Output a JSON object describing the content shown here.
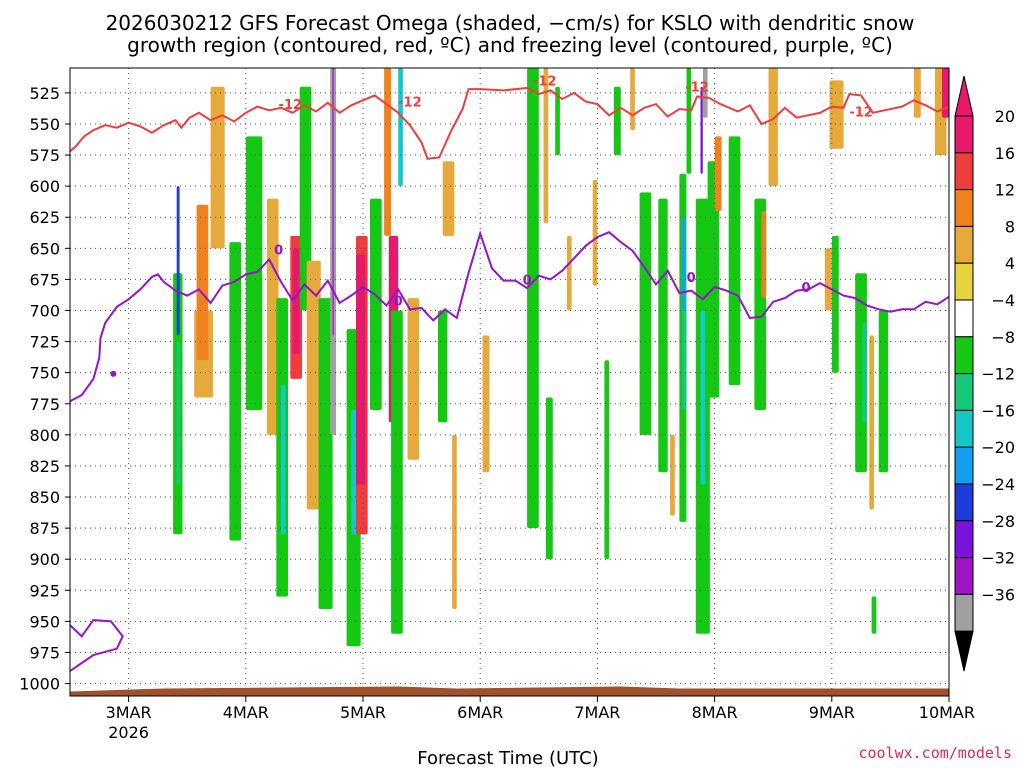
{
  "chart_data": {
    "type": "heatmap",
    "title_lines": [
      "2026030212 GFS Forecast Omega (shaded, −cm/s) for KSLO with dendritic snow",
      "growth region (contoured, red, ºC) and freezing level (contoured, purple, ºC)"
    ],
    "xlabel": "Forecast Time (UTC)",
    "credit": "coolwx.com/models",
    "x_ticks": [
      {
        "t": 0.5,
        "label": "3MAR",
        "sub": "2026"
      },
      {
        "t": 1.5,
        "label": "4MAR"
      },
      {
        "t": 2.5,
        "label": "5MAR"
      },
      {
        "t": 3.5,
        "label": "6MAR"
      },
      {
        "t": 4.5,
        "label": "7MAR"
      },
      {
        "t": 5.5,
        "label": "8MAR"
      },
      {
        "t": 6.5,
        "label": "9MAR"
      },
      {
        "t": 7.5,
        "label": "10MAR"
      }
    ],
    "xlim": [
      0,
      7.5
    ],
    "ylim": [
      1010,
      505
    ],
    "y_ticks": [
      525,
      550,
      575,
      600,
      625,
      650,
      675,
      700,
      725,
      750,
      775,
      800,
      825,
      850,
      875,
      900,
      925,
      950,
      975,
      1000
    ],
    "colorbar": {
      "labels": [
        "20",
        "16",
        "12",
        "8",
        "4",
        "−4",
        "−8",
        "−12",
        "−16",
        "−20",
        "−24",
        "−28",
        "−32",
        "−36"
      ],
      "colors": [
        "#e8186a",
        "#f03c3c",
        "#f0821e",
        "#e6aa3c",
        "#e6d23c",
        "#ffffff",
        "#14c814",
        "#14c878",
        "#14c8c8",
        "#14a0f0",
        "#1e3cdc",
        "#7814dc",
        "#a014c8",
        "#a0a0a0"
      ]
    },
    "dgz_label": "-12",
    "frz_label": "0",
    "dgz_contour": [
      [
        0.0,
        572
      ],
      [
        0.05,
        568
      ],
      [
        0.12,
        560
      ],
      [
        0.2,
        555
      ],
      [
        0.3,
        551
      ],
      [
        0.4,
        553
      ],
      [
        0.5,
        549
      ],
      [
        0.6,
        552
      ],
      [
        0.7,
        557
      ],
      [
        0.8,
        551
      ],
      [
        0.9,
        547
      ],
      [
        0.95,
        553
      ],
      [
        1.02,
        545
      ],
      [
        1.1,
        541
      ],
      [
        1.2,
        547
      ],
      [
        1.3,
        543
      ],
      [
        1.4,
        548
      ],
      [
        1.5,
        541
      ],
      [
        1.6,
        536
      ],
      [
        1.7,
        539
      ],
      [
        1.8,
        537
      ],
      [
        1.9,
        541
      ],
      [
        2.0,
        535
      ],
      [
        2.1,
        540
      ],
      [
        2.2,
        533
      ],
      [
        2.3,
        541
      ],
      [
        2.4,
        535
      ],
      [
        2.5,
        531
      ],
      [
        2.6,
        527
      ],
      [
        2.7,
        534
      ],
      [
        2.8,
        541
      ],
      [
        2.9,
        551
      ],
      [
        3.0,
        565
      ],
      [
        3.05,
        578
      ],
      [
        3.15,
        577
      ],
      [
        3.25,
        556
      ],
      [
        3.35,
        538
      ],
      [
        3.4,
        522
      ],
      [
        3.5,
        522
      ],
      [
        3.7,
        523
      ],
      [
        3.9,
        521
      ],
      [
        4.0,
        526
      ],
      [
        4.1,
        523
      ],
      [
        4.2,
        530
      ],
      [
        4.3,
        525
      ],
      [
        4.4,
        532
      ],
      [
        4.5,
        534
      ],
      [
        4.6,
        543
      ],
      [
        4.7,
        537
      ],
      [
        4.8,
        543
      ],
      [
        4.9,
        537
      ],
      [
        5.0,
        534
      ],
      [
        5.1,
        544
      ],
      [
        5.2,
        538
      ],
      [
        5.3,
        539
      ],
      [
        5.35,
        528
      ],
      [
        5.45,
        529
      ],
      [
        5.55,
        534
      ],
      [
        5.7,
        540
      ],
      [
        5.8,
        535
      ],
      [
        5.9,
        550
      ],
      [
        6.0,
        546
      ],
      [
        6.1,
        537
      ],
      [
        6.2,
        545
      ],
      [
        6.4,
        541
      ],
      [
        6.5,
        536
      ],
      [
        6.6,
        537
      ],
      [
        6.65,
        526
      ],
      [
        6.75,
        527
      ],
      [
        6.85,
        541
      ],
      [
        6.95,
        539
      ],
      [
        7.1,
        536
      ],
      [
        7.2,
        531
      ],
      [
        7.3,
        535
      ],
      [
        7.4,
        540
      ],
      [
        7.5,
        536
      ]
    ],
    "frz_contour": [
      [
        0.0,
        773
      ],
      [
        0.1,
        768
      ],
      [
        0.2,
        755
      ],
      [
        0.25,
        738
      ],
      [
        0.26,
        722
      ],
      [
        0.3,
        710
      ],
      [
        0.4,
        697
      ],
      [
        0.5,
        691
      ],
      [
        0.6,
        683
      ],
      [
        0.7,
        673
      ],
      [
        0.75,
        671
      ],
      [
        0.8,
        677
      ],
      [
        0.9,
        684
      ],
      [
        1.0,
        688
      ],
      [
        1.1,
        683
      ],
      [
        1.2,
        694
      ],
      [
        1.3,
        680
      ],
      [
        1.4,
        677
      ],
      [
        1.5,
        671
      ],
      [
        1.6,
        669
      ],
      [
        1.7,
        659
      ],
      [
        1.8,
        677
      ],
      [
        1.9,
        692
      ],
      [
        2.0,
        679
      ],
      [
        2.1,
        688
      ],
      [
        2.2,
        676
      ],
      [
        2.3,
        694
      ],
      [
        2.4,
        688
      ],
      [
        2.5,
        681
      ],
      [
        2.6,
        687
      ],
      [
        2.7,
        696
      ],
      [
        2.8,
        683
      ],
      [
        2.9,
        699
      ],
      [
        3.0,
        698
      ],
      [
        3.1,
        708
      ],
      [
        3.2,
        699
      ],
      [
        3.3,
        706
      ],
      [
        3.4,
        670
      ],
      [
        3.5,
        638
      ],
      [
        3.6,
        666
      ],
      [
        3.7,
        676
      ],
      [
        3.8,
        676
      ],
      [
        3.9,
        682
      ],
      [
        4.0,
        672
      ],
      [
        4.1,
        675
      ],
      [
        4.2,
        668
      ],
      [
        4.3,
        658
      ],
      [
        4.4,
        648
      ],
      [
        4.5,
        641
      ],
      [
        4.6,
        637
      ],
      [
        4.7,
        645
      ],
      [
        4.8,
        652
      ],
      [
        4.9,
        665
      ],
      [
        5.0,
        679
      ],
      [
        5.1,
        668
      ],
      [
        5.2,
        686
      ],
      [
        5.3,
        684
      ],
      [
        5.4,
        691
      ],
      [
        5.5,
        681
      ],
      [
        5.6,
        684
      ],
      [
        5.7,
        688
      ],
      [
        5.8,
        706
      ],
      [
        5.9,
        705
      ],
      [
        6.0,
        693
      ],
      [
        6.1,
        690
      ],
      [
        6.2,
        684
      ],
      [
        6.3,
        683
      ],
      [
        6.4,
        678
      ],
      [
        6.5,
        683
      ],
      [
        6.6,
        688
      ],
      [
        6.7,
        690
      ],
      [
        6.8,
        696
      ],
      [
        6.9,
        699
      ],
      [
        7.0,
        701
      ],
      [
        7.1,
        699
      ],
      [
        7.2,
        699
      ],
      [
        7.3,
        693
      ],
      [
        7.4,
        695
      ],
      [
        7.5,
        689
      ]
    ],
    "frz_contour_low": [
      [
        0.0,
        953
      ],
      [
        0.1,
        962
      ],
      [
        0.2,
        949
      ],
      [
        0.35,
        950
      ],
      [
        0.45,
        962
      ],
      [
        0.4,
        972
      ],
      [
        0.2,
        977
      ],
      [
        0.0,
        990
      ]
    ],
    "omega_cells": [
      {
        "v": -6,
        "t": [
          0.88,
          0.96
        ],
        "p": [
          670,
          880
        ]
      },
      {
        "v": -10,
        "t": [
          0.91,
          0.94
        ],
        "p": [
          725,
          840
        ]
      },
      {
        "v": -22,
        "t": [
          0.91,
          0.935
        ],
        "p": [
          600,
          720
        ]
      },
      {
        "v": 6,
        "t": [
          1.06,
          1.22
        ],
        "p": [
          700,
          770
        ]
      },
      {
        "v": 10,
        "t": [
          1.08,
          1.18
        ],
        "p": [
          615,
          740
        ]
      },
      {
        "v": 6,
        "t": [
          1.2,
          1.32
        ],
        "p": [
          520,
          650
        ]
      },
      {
        "v": -6,
        "t": [
          1.36,
          1.46
        ],
        "p": [
          645,
          885
        ]
      },
      {
        "v": -6,
        "t": [
          1.5,
          1.64
        ],
        "p": [
          560,
          780
        ]
      },
      {
        "v": 6,
        "t": [
          1.68,
          1.78
        ],
        "p": [
          610,
          800
        ]
      },
      {
        "v": -6,
        "t": [
          1.76,
          1.86
        ],
        "p": [
          690,
          930
        ]
      },
      {
        "v": -14,
        "t": [
          1.8,
          1.84
        ],
        "p": [
          760,
          880
        ]
      },
      {
        "v": 14,
        "t": [
          1.88,
          1.98
        ],
        "p": [
          640,
          755
        ]
      },
      {
        "v": 18,
        "t": [
          1.9,
          1.96
        ],
        "p": [
          650,
          735
        ]
      },
      {
        "v": -6,
        "t": [
          1.96,
          2.06
        ],
        "p": [
          520,
          700
        ]
      },
      {
        "v": 6,
        "t": [
          2.02,
          2.14
        ],
        "p": [
          660,
          860
        ]
      },
      {
        "v": -6,
        "t": [
          2.12,
          2.24
        ],
        "p": [
          690,
          940
        ]
      },
      {
        "v": -34,
        "t": [
          2.22,
          2.27
        ],
        "p": [
          505,
          800
        ]
      },
      {
        "v": -30,
        "t": [
          2.24,
          2.25
        ],
        "p": [
          505,
          720
        ]
      },
      {
        "v": -6,
        "t": [
          2.36,
          2.48
        ],
        "p": [
          715,
          970
        ]
      },
      {
        "v": -14,
        "t": [
          2.4,
          2.46
        ],
        "p": [
          780,
          880
        ]
      },
      {
        "v": 12,
        "t": [
          2.44,
          2.54
        ],
        "p": [
          640,
          880
        ]
      },
      {
        "v": 22,
        "t": [
          2.44,
          2.52
        ],
        "p": [
          655,
          840
        ]
      },
      {
        "v": -6,
        "t": [
          2.56,
          2.66
        ],
        "p": [
          610,
          780
        ]
      },
      {
        "v": 10,
        "t": [
          2.68,
          2.74
        ],
        "p": [
          505,
          640
        ]
      },
      {
        "v": 18,
        "t": [
          2.72,
          2.8
        ],
        "p": [
          640,
          790
        ]
      },
      {
        "v": -6,
        "t": [
          2.74,
          2.84
        ],
        "p": [
          700,
          960
        ]
      },
      {
        "v": -14,
        "t": [
          2.8,
          2.84
        ],
        "p": [
          505,
          600
        ]
      },
      {
        "v": 6,
        "t": [
          2.88,
          2.98
        ],
        "p": [
          690,
          820
        ]
      },
      {
        "v": 6,
        "t": [
          3.18,
          3.28
        ],
        "p": [
          580,
          640
        ]
      },
      {
        "v": -6,
        "t": [
          3.14,
          3.22
        ],
        "p": [
          700,
          790
        ]
      },
      {
        "v": 6,
        "t": [
          3.26,
          3.3
        ],
        "p": [
          800,
          940
        ]
      },
      {
        "v": 6,
        "t": [
          3.52,
          3.58
        ],
        "p": [
          720,
          830
        ]
      },
      {
        "v": -6,
        "t": [
          3.9,
          4.0
        ],
        "p": [
          505,
          875
        ]
      },
      {
        "v": -6,
        "t": [
          4.06,
          4.12
        ],
        "p": [
          770,
          900
        ]
      },
      {
        "v": 6,
        "t": [
          4.04,
          4.08
        ],
        "p": [
          505,
          630
        ]
      },
      {
        "v": -6,
        "t": [
          4.14,
          4.18
        ],
        "p": [
          520,
          575
        ]
      },
      {
        "v": 6,
        "t": [
          4.24,
          4.28
        ],
        "p": [
          640,
          700
        ]
      },
      {
        "v": 6,
        "t": [
          4.46,
          4.5
        ],
        "p": [
          595,
          680
        ]
      },
      {
        "v": -6,
        "t": [
          4.56,
          4.6
        ],
        "p": [
          740,
          900
        ]
      },
      {
        "v": -6,
        "t": [
          4.64,
          4.7
        ],
        "p": [
          520,
          575
        ]
      },
      {
        "v": 6,
        "t": [
          4.78,
          4.82
        ],
        "p": [
          505,
          555
        ]
      },
      {
        "v": -6,
        "t": [
          4.86,
          4.96
        ],
        "p": [
          605,
          800
        ]
      },
      {
        "v": -6,
        "t": [
          5.02,
          5.1
        ],
        "p": [
          610,
          830
        ]
      },
      {
        "v": 6,
        "t": [
          5.12,
          5.16
        ],
        "p": [
          800,
          865
        ]
      },
      {
        "v": -6,
        "t": [
          5.2,
          5.26
        ],
        "p": [
          590,
          870
        ]
      },
      {
        "v": -10,
        "t": [
          5.22,
          5.26
        ],
        "p": [
          650,
          780
        ]
      },
      {
        "v": -18,
        "t": [
          5.22,
          5.25
        ],
        "p": [
          625,
          700
        ]
      },
      {
        "v": -6,
        "t": [
          5.26,
          5.3
        ],
        "p": [
          505,
          590
        ]
      },
      {
        "v": -6,
        "t": [
          5.34,
          5.46
        ],
        "p": [
          610,
          960
        ]
      },
      {
        "v": -14,
        "t": [
          5.38,
          5.42
        ],
        "p": [
          700,
          840
        ]
      },
      {
        "v": -26,
        "t": [
          5.38,
          5.4
        ],
        "p": [
          520,
          590
        ]
      },
      {
        "v": -34,
        "t": [
          5.4,
          5.44
        ],
        "p": [
          505,
          545
        ]
      },
      {
        "v": -6,
        "t": [
          5.44,
          5.54
        ],
        "p": [
          580,
          770
        ]
      },
      {
        "v": 10,
        "t": [
          5.5,
          5.56
        ],
        "p": [
          560,
          620
        ]
      },
      {
        "v": -6,
        "t": [
          5.62,
          5.72
        ],
        "p": [
          560,
          760
        ]
      },
      {
        "v": -6,
        "t": [
          5.84,
          5.94
        ],
        "p": [
          610,
          780
        ]
      },
      {
        "v": 10,
        "t": [
          5.9,
          5.94
        ],
        "p": [
          620,
          690
        ]
      },
      {
        "v": 6,
        "t": [
          5.96,
          6.04
        ],
        "p": [
          505,
          600
        ]
      },
      {
        "v": 6,
        "t": [
          6.44,
          6.5
        ],
        "p": [
          650,
          700
        ]
      },
      {
        "v": -6,
        "t": [
          6.5,
          6.56
        ],
        "p": [
          640,
          750
        ]
      },
      {
        "v": 6,
        "t": [
          6.48,
          6.6
        ],
        "p": [
          515,
          570
        ]
      },
      {
        "v": -6,
        "t": [
          6.7,
          6.8
        ],
        "p": [
          670,
          830
        ]
      },
      {
        "v": -10,
        "t": [
          6.76,
          6.8
        ],
        "p": [
          710,
          790
        ]
      },
      {
        "v": 6,
        "t": [
          6.82,
          6.86
        ],
        "p": [
          720,
          860
        ]
      },
      {
        "v": -6,
        "t": [
          6.9,
          6.98
        ],
        "p": [
          700,
          830
        ]
      },
      {
        "v": -6,
        "t": [
          6.84,
          6.88
        ],
        "p": [
          930,
          960
        ]
      },
      {
        "v": 6,
        "t": [
          7.2,
          7.26
        ],
        "p": [
          505,
          545
        ]
      },
      {
        "v": 6,
        "t": [
          7.38,
          7.48
        ],
        "p": [
          505,
          575
        ]
      },
      {
        "v": 20,
        "t": [
          7.44,
          7.5
        ],
        "p": [
          505,
          545
        ]
      }
    ]
  }
}
